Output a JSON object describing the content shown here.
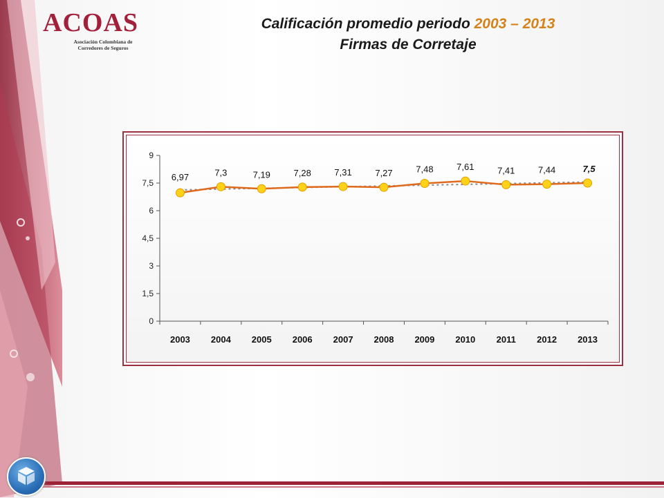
{
  "logo": {
    "name": "ACOAS",
    "line1": "Asociación Colombiana de",
    "line2": "Corredores de Seguros"
  },
  "title": {
    "prefix": "Calificación promedio periodo ",
    "years": "2003 – 2013",
    "subtitle": "Firmas de Corretaje"
  },
  "colors": {
    "brand": "#9c3040",
    "title_accent": "#d3831a",
    "series_line": "#e06a1c",
    "marker_fill": "#ffd21a",
    "trend_line": "#888888"
  },
  "chart_data": {
    "type": "line",
    "categories": [
      "2003",
      "2004",
      "2005",
      "2006",
      "2007",
      "2008",
      "2009",
      "2010",
      "2011",
      "2012",
      "2013"
    ],
    "series": [
      {
        "values": [
          6.97,
          7.3,
          7.19,
          7.28,
          7.31,
          7.27,
          7.48,
          7.61,
          7.41,
          7.44,
          7.5
        ],
        "labels": [
          "6,97",
          "7,3",
          "7,19",
          "7,28",
          "7,31",
          "7,27",
          "7,48",
          "7,61",
          "7,41",
          "7,44",
          "7,5"
        ]
      }
    ],
    "trendline": "linear",
    "ylim": [
      0,
      9
    ],
    "yticks": [
      0,
      1.5,
      3,
      4.5,
      6,
      7.5,
      9
    ],
    "ytick_labels": [
      "0",
      "1,5",
      "3",
      "4,5",
      "6",
      "7,5",
      "9"
    ],
    "xlabel": "",
    "ylabel": "",
    "grid": false,
    "legend": false
  }
}
